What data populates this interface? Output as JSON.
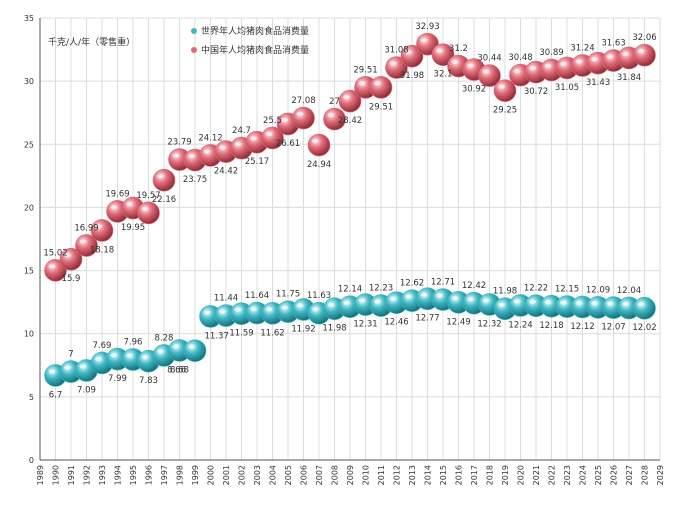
{
  "chart_data": {
    "type": "scatter",
    "unit_label": "千克/人/年（零售重）",
    "xlim": [
      1989,
      2029
    ],
    "ylim": [
      0,
      35
    ],
    "yticks": [
      0,
      5,
      10,
      15,
      20,
      25,
      30,
      35
    ],
    "xticks": [
      1989,
      1990,
      1991,
      1992,
      1993,
      1994,
      1995,
      1996,
      1997,
      1998,
      1999,
      2000,
      2001,
      2002,
      2003,
      2004,
      2005,
      2006,
      2007,
      2008,
      2009,
      2010,
      2011,
      2012,
      2013,
      2014,
      2015,
      2016,
      2017,
      2018,
      2019,
      2020,
      2021,
      2022,
      2023,
      2024,
      2025,
      2026,
      2027,
      2028,
      2029
    ],
    "grid": true,
    "legend_position": "top-center",
    "series": [
      {
        "name": "世界年人均猪肉食品消费量",
        "color": "#3fb8c4",
        "x": [
          1990,
          1991,
          1992,
          1993,
          1994,
          1995,
          1996,
          1997,
          1998,
          1999,
          2000,
          2001,
          2002,
          2003,
          2004,
          2005,
          2006,
          2007,
          2008,
          2009,
          2010,
          2011,
          2012,
          2013,
          2014,
          2015,
          2016,
          2017,
          2018,
          2019,
          2020,
          2021,
          2022,
          2023,
          2024,
          2025,
          2026,
          2027,
          2028
        ],
        "values": [
          6.7,
          7,
          7.09,
          7.69,
          7.99,
          7.96,
          7.83,
          8.28,
          8.68,
          8.66,
          11.37,
          11.44,
          11.59,
          11.64,
          11.62,
          11.75,
          11.92,
          11.63,
          11.98,
          12.14,
          12.31,
          12.23,
          12.46,
          12.62,
          12.77,
          12.71,
          12.49,
          12.42,
          12.32,
          11.98,
          12.24,
          12.22,
          12.18,
          12.15,
          12.12,
          12.09,
          12.07,
          12.04,
          12.02
        ],
        "labels": [
          "6.7",
          "7",
          "7.09",
          "7.69",
          "7.99",
          "7.96",
          "7.83",
          "8.28",
          "8.68",
          "8.66",
          "11.37",
          "11.44",
          "11.59",
          "11.64",
          "11.62",
          "11.75",
          "11.92",
          "11.63",
          "11.98",
          "12.14",
          "12.31",
          "12.23",
          "12.46",
          "12.62",
          "12.77",
          "12.71",
          "12.49",
          "12.42",
          "12.32",
          "11.98",
          "12.24",
          "12.22",
          "12.18",
          "12.15",
          "12.12",
          "12.09",
          "12.07",
          "12.04",
          "12.02"
        ],
        "label_pos": [
          "below",
          "above",
          "below",
          "above",
          "below",
          "above",
          "below",
          "above",
          "below",
          "left",
          "right",
          "above",
          "below",
          "above",
          "below",
          "above",
          "below",
          "above",
          "below",
          "above",
          "below",
          "above",
          "below",
          "above",
          "below",
          "above",
          "below",
          "above",
          "below",
          "above",
          "below",
          "above",
          "below",
          "above",
          "below",
          "above",
          "below",
          "above",
          "below"
        ]
      },
      {
        "name": "中国年人均猪肉食品消费量",
        "color": "#e06a78",
        "x": [
          1990,
          1991,
          1992,
          1993,
          1994,
          1995,
          1996,
          1997,
          1998,
          1999,
          2000,
          2001,
          2002,
          2003,
          2004,
          2005,
          2006,
          2007,
          2008,
          2009,
          2010,
          2011,
          2012,
          2013,
          2014,
          2015,
          2016,
          2017,
          2018,
          2019,
          2020,
          2021,
          2022,
          2023,
          2024,
          2025,
          2026,
          2027,
          2028
        ],
        "values": [
          15.02,
          15.9,
          16.99,
          18.18,
          19.69,
          19.95,
          19.57,
          22.16,
          23.79,
          23.75,
          24.12,
          24.42,
          24.7,
          25.17,
          25.5,
          26.61,
          27.08,
          24.94,
          27,
          28.42,
          29.51,
          29.51,
          31.08,
          31.98,
          32.93,
          32.1,
          31.2,
          30.92,
          30.44,
          29.25,
          30.48,
          30.72,
          30.89,
          31.05,
          31.24,
          31.43,
          31.63,
          31.84,
          32.06
        ],
        "labels": [
          "15.02",
          "15.9",
          "16.99",
          "18.18",
          "19.69",
          "19.95",
          "19.57",
          "22.16",
          "23.79",
          "23.75",
          "24.12",
          "24.42",
          "24.7",
          "25.17",
          "25.5",
          "26.61",
          "27.08",
          "24.94",
          "27",
          "28.42",
          "29.51",
          "29.51",
          "31.08",
          "31.98",
          "32.93",
          "32.1",
          "31.2",
          "30.92",
          "30.44",
          "29.25",
          "30.48",
          "30.72",
          "30.89",
          "31.05",
          "31.24",
          "31.43",
          "31.63",
          "31.84",
          "32.06"
        ],
        "label_pos": [
          "above",
          "below",
          "above",
          "below",
          "above",
          "below",
          "above",
          "below",
          "above",
          "below",
          "above",
          "below",
          "above",
          "below",
          "above",
          "below",
          "above",
          "below",
          "above",
          "below",
          "above",
          "below",
          "above",
          "below",
          "above",
          "below",
          "above",
          "below",
          "above",
          "below",
          "above",
          "below",
          "above",
          "below",
          "above",
          "below",
          "above",
          "below",
          "above"
        ]
      }
    ]
  }
}
